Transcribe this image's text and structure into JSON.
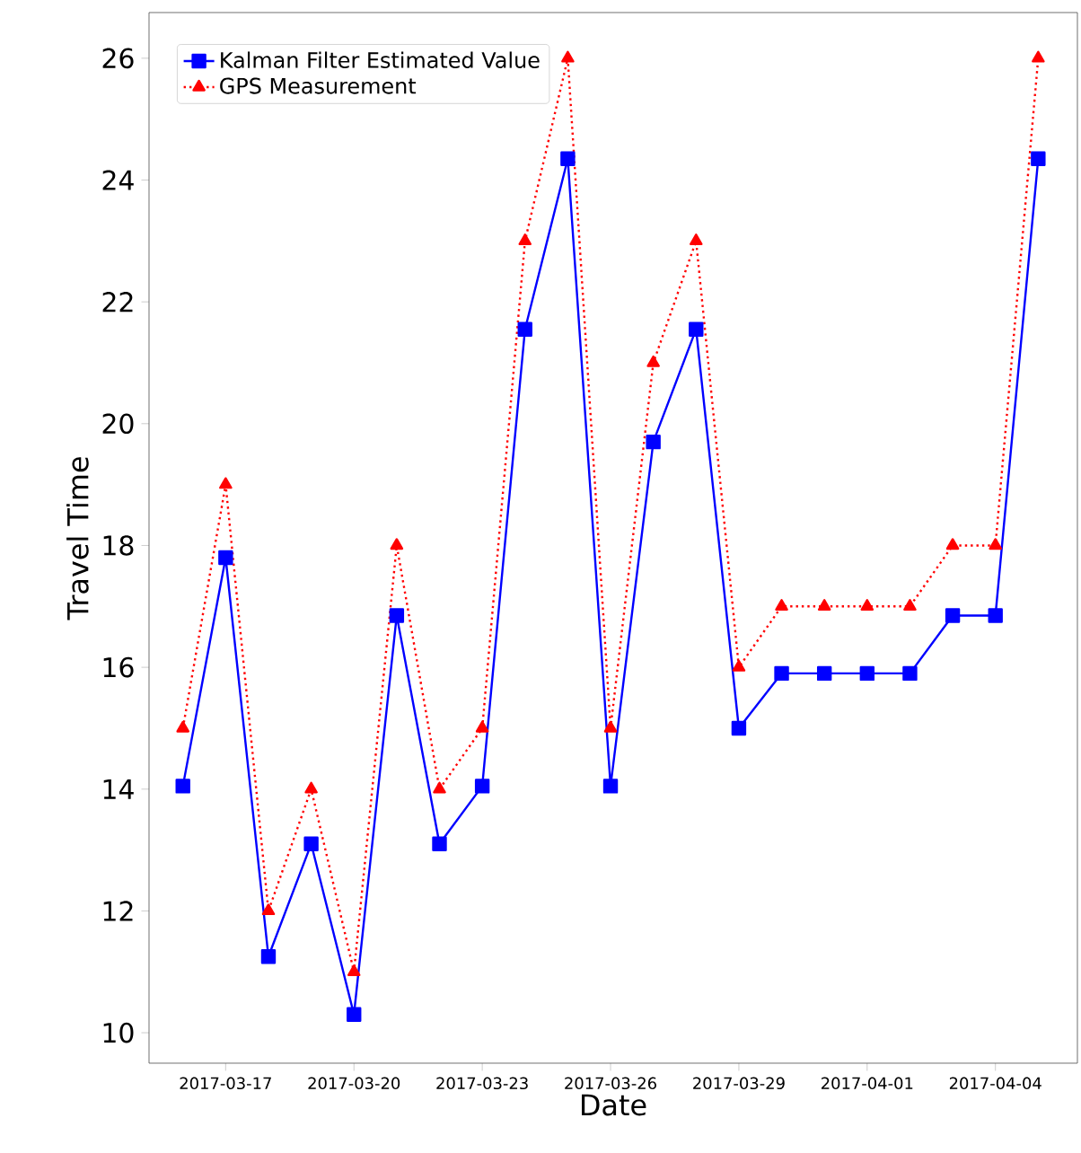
{
  "chart_data": {
    "type": "line",
    "xlabel": "Date",
    "ylabel": "Travel Time",
    "x": [
      "2017-03-16",
      "2017-03-17",
      "2017-03-18",
      "2017-03-19",
      "2017-03-20",
      "2017-03-21",
      "2017-03-22",
      "2017-03-23",
      "2017-03-24",
      "2017-03-25",
      "2017-03-26",
      "2017-03-27",
      "2017-03-28",
      "2017-03-29",
      "2017-03-30",
      "2017-03-31",
      "2017-04-01",
      "2017-04-02",
      "2017-04-03",
      "2017-04-04",
      "2017-04-05"
    ],
    "series": [
      {
        "name": "Kalman Filter Estimated Value",
        "color": "#0000ff",
        "marker": "square",
        "line_style": "solid",
        "values": [
          14.05,
          17.8,
          11.25,
          13.1,
          10.3,
          16.85,
          13.1,
          14.05,
          21.55,
          24.35,
          14.05,
          19.7,
          21.55,
          15.0,
          15.9,
          15.9,
          15.9,
          15.9,
          16.85,
          16.85,
          24.35
        ]
      },
      {
        "name": "GPS Measurement",
        "color": "#ff0000",
        "marker": "triangle",
        "line_style": "dotted",
        "values": [
          15,
          19,
          12,
          14,
          11,
          18,
          14,
          15,
          23,
          26,
          15,
          21,
          23,
          16,
          17,
          17,
          17,
          17,
          18,
          18,
          26
        ]
      }
    ],
    "xlim": [
      "2017-03-15T05:00",
      "2017-04-05T22:00"
    ],
    "xticks": [
      "2017-03-17",
      "2017-03-20",
      "2017-03-23",
      "2017-03-26",
      "2017-03-29",
      "2017-04-01",
      "2017-04-04"
    ],
    "ylim": [
      9.5,
      26.75
    ],
    "yticks": [
      10,
      12,
      14,
      16,
      18,
      20,
      22,
      24,
      26
    ],
    "grid": false,
    "legend": "top left"
  }
}
